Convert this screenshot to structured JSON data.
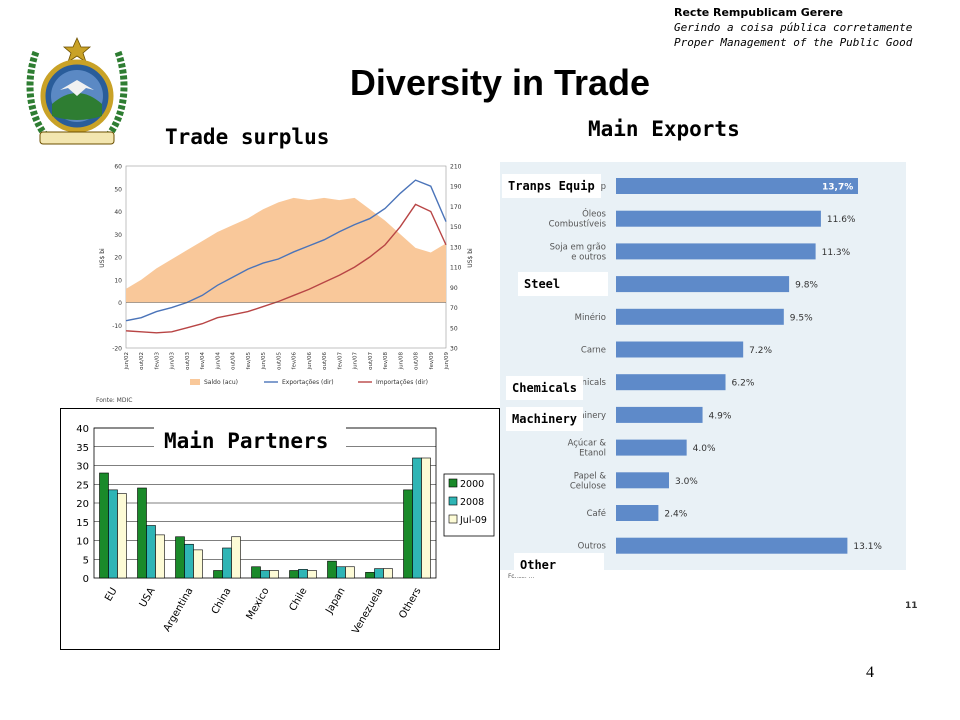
{
  "header": {
    "motto_1": "Recte Rempublicam Gerere",
    "motto_2": "Gerindo a coisa pública corretamente",
    "motto_3": "Proper Management of the Public Good",
    "title": "Diversity in Trade",
    "page_number": "4",
    "slide_mark": "11"
  },
  "colors": {
    "surplus_fill": "#f9c89a",
    "exports_line": "#4b74b9",
    "imports_line": "#b84545",
    "export_bar": "#5e8ac9",
    "export_panel": "#e9f1f6",
    "series_2000": "#1a8a2a",
    "series_2008": "#2fb5b5",
    "series_jul09": "#fdfbd6"
  },
  "trade_surplus": {
    "title": "Trade surplus",
    "source": "Fonte: MDIC"
  },
  "main_exports": {
    "title": "Main Exports",
    "source": "Fonte: ...",
    "overlay_labels": {
      "transport": "Tranps Equip",
      "steel": "Steel",
      "chemicals": "Chemicals",
      "machinery": "Machinery",
      "other": "Other"
    }
  },
  "main_partners": {
    "title": "Main Partners"
  },
  "chart_data": [
    {
      "type": "area",
      "title": "Trade surplus",
      "ylabel": "US$ bi",
      "y2label": "US$ bi",
      "ylim": [
        -20,
        60
      ],
      "y2lim": [
        30,
        210
      ],
      "yticks": [
        -20,
        -10,
        0,
        10,
        20,
        30,
        40,
        50,
        60
      ],
      "y2ticks": [
        30,
        50,
        70,
        90,
        110,
        130,
        150,
        170,
        190,
        210
      ],
      "x": [
        "jun/02",
        "out/02",
        "fev/03",
        "jun/03",
        "out/03",
        "fev/04",
        "jun/04",
        "out/04",
        "fev/05",
        "jun/05",
        "out/05",
        "fev/06",
        "jun/06",
        "out/06",
        "fev/07",
        "jun/07",
        "out/07",
        "fev/08",
        "jun/08",
        "out/08",
        "fev/09",
        "jun/09"
      ],
      "series": [
        {
          "name": "Saldo (acu)",
          "axis": "left",
          "kind": "area",
          "values": [
            6,
            10,
            15,
            19,
            23,
            27,
            31,
            34,
            37,
            41,
            44,
            46,
            45,
            46,
            45,
            46,
            41,
            36,
            30,
            24,
            22,
            26
          ]
        },
        {
          "name": "Exportações (dir)",
          "axis": "right",
          "kind": "line",
          "values": [
            57,
            60,
            66,
            70,
            75,
            82,
            92,
            100,
            108,
            114,
            118,
            125,
            131,
            137,
            145,
            152,
            158,
            168,
            183,
            196,
            190,
            155
          ]
        },
        {
          "name": "Importações (dir)",
          "axis": "right",
          "kind": "line",
          "values": [
            47,
            46,
            45,
            46,
            50,
            54,
            60,
            63,
            66,
            71,
            76,
            82,
            88,
            95,
            102,
            110,
            120,
            132,
            150,
            172,
            165,
            132
          ]
        }
      ],
      "legend": "bottom"
    },
    {
      "type": "bar",
      "orientation": "horizontal",
      "title": "Main Exports",
      "categories": [
        "Tranps Equip",
        "Óleos Combustíveis",
        "Soja em grão e outros",
        "Steel",
        "Minério",
        "Carne",
        "Chemicals",
        "Machinery",
        "Açúcar & Etanol",
        "Papel & Celulose",
        "Café",
        "Outros"
      ],
      "values": [
        13.7,
        11.6,
        11.3,
        9.8,
        9.5,
        7.2,
        6.2,
        4.9,
        4.0,
        3.0,
        2.4,
        13.1
      ],
      "value_labels": [
        "13,7%",
        "11.6%",
        "11.3%",
        "9.8%",
        "9.5%",
        "7.2%",
        "6.2%",
        "4.9%",
        "4.0%",
        "3.0%",
        "2.4%",
        "13.1%"
      ]
    },
    {
      "type": "bar",
      "title": "Main Partners",
      "categories": [
        "EU",
        "USA",
        "Argentina",
        "China",
        "Mexico",
        "Chile",
        "Japan",
        "Venezuela",
        "Others"
      ],
      "ylim": [
        0,
        40
      ],
      "yticks": [
        0,
        5,
        10,
        15,
        20,
        25,
        30,
        35,
        40
      ],
      "series": [
        {
          "name": "2000",
          "values": [
            28,
            24,
            11,
            2,
            3,
            2,
            4.5,
            1.5,
            23.5
          ]
        },
        {
          "name": "2008",
          "values": [
            23.5,
            14,
            9,
            8,
            2,
            2.3,
            3,
            2.5,
            32
          ]
        },
        {
          "name": "Jul-09",
          "values": [
            22.5,
            11.5,
            7.5,
            11,
            2,
            2,
            3,
            2.5,
            32
          ]
        }
      ],
      "legend": "right"
    }
  ]
}
